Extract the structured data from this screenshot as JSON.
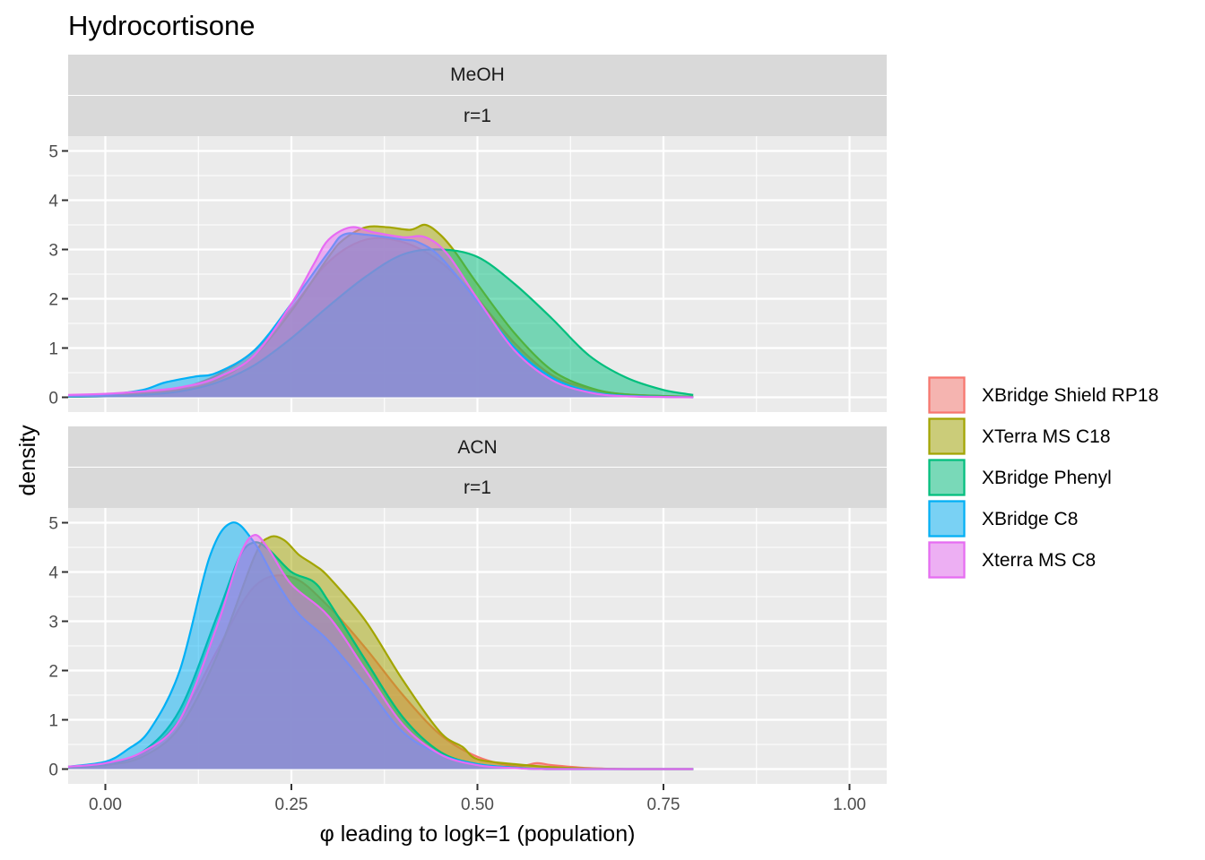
{
  "chart_data": {
    "type": "area",
    "title": "Hydrocortisone",
    "xlabel": "φ leading to logk=1 (population)",
    "ylabel": "density",
    "xlim": [
      -0.05,
      1.05
    ],
    "ylim": [
      -0.3,
      5.3
    ],
    "x_ticks": [
      0.0,
      0.25,
      0.5,
      0.75,
      1.0
    ],
    "x_tick_labels": [
      "0.00",
      "0.25",
      "0.50",
      "0.75",
      "1.00"
    ],
    "y_ticks": [
      0,
      1,
      2,
      3,
      4,
      5
    ],
    "y_tick_labels": [
      "0",
      "1",
      "2",
      "3",
      "4",
      "5"
    ],
    "grid": true,
    "legend_position": "right",
    "legend": [
      "XBridge Shield RP18",
      "XTerra MS C18",
      "XBridge Phenyl",
      "XBridge C8",
      "Xterra MS C8"
    ],
    "series_colors": [
      "#F8766D",
      "#A3A500",
      "#00BF7D",
      "#00B0F6",
      "#E76BF3"
    ],
    "panels": [
      {
        "strip": [
          "MeOH",
          "r=1"
        ],
        "series": [
          {
            "name": "XBridge Shield RP18",
            "x": [
              -0.05,
              0.0,
              0.05,
              0.1,
              0.15,
              0.2,
              0.25,
              0.3,
              0.35,
              0.4,
              0.45,
              0.5,
              0.55,
              0.6,
              0.65,
              0.7,
              0.79
            ],
            "y": [
              0.03,
              0.04,
              0.08,
              0.18,
              0.45,
              0.95,
              1.8,
              2.75,
              3.2,
              3.15,
              2.75,
              2.0,
              1.1,
              0.45,
              0.18,
              0.06,
              0.01
            ]
          },
          {
            "name": "XTerra MS C18",
            "x": [
              -0.05,
              0.0,
              0.05,
              0.1,
              0.15,
              0.2,
              0.25,
              0.3,
              0.32,
              0.35,
              0.38,
              0.41,
              0.43,
              0.45,
              0.47,
              0.5,
              0.55,
              0.6,
              0.65,
              0.7,
              0.79
            ],
            "y": [
              0.02,
              0.04,
              0.08,
              0.15,
              0.35,
              0.85,
              1.75,
              2.85,
              3.2,
              3.45,
              3.45,
              3.4,
              3.5,
              3.3,
              2.95,
              2.3,
              1.3,
              0.55,
              0.2,
              0.06,
              0.01
            ]
          },
          {
            "name": "XBridge Phenyl",
            "x": [
              -0.05,
              0.0,
              0.05,
              0.1,
              0.15,
              0.2,
              0.25,
              0.3,
              0.35,
              0.4,
              0.45,
              0.5,
              0.55,
              0.6,
              0.65,
              0.7,
              0.75,
              0.79
            ],
            "y": [
              0.01,
              0.02,
              0.05,
              0.12,
              0.3,
              0.65,
              1.2,
              1.85,
              2.45,
              2.9,
              3.0,
              2.85,
              2.3,
              1.6,
              0.85,
              0.4,
              0.15,
              0.05
            ]
          },
          {
            "name": "XBridge C8",
            "x": [
              -0.05,
              0.0,
              0.05,
              0.08,
              0.12,
              0.15,
              0.2,
              0.25,
              0.3,
              0.32,
              0.35,
              0.4,
              0.42,
              0.45,
              0.5,
              0.55,
              0.6,
              0.65,
              0.7,
              0.79
            ],
            "y": [
              0.02,
              0.05,
              0.15,
              0.3,
              0.42,
              0.5,
              0.95,
              1.9,
              2.95,
              3.3,
              3.3,
              3.2,
              3.15,
              2.85,
              1.95,
              1.0,
              0.4,
              0.12,
              0.03,
              0.0
            ]
          },
          {
            "name": "Xterra MS C8",
            "x": [
              -0.05,
              0.0,
              0.05,
              0.1,
              0.15,
              0.2,
              0.25,
              0.28,
              0.3,
              0.33,
              0.36,
              0.4,
              0.43,
              0.46,
              0.5,
              0.55,
              0.6,
              0.65,
              0.7,
              0.79
            ],
            "y": [
              0.05,
              0.07,
              0.12,
              0.2,
              0.4,
              0.85,
              1.9,
              2.7,
              3.2,
              3.45,
              3.35,
              3.25,
              3.25,
              2.9,
              2.0,
              0.95,
              0.35,
              0.1,
              0.02,
              0.0
            ]
          }
        ]
      },
      {
        "strip": [
          "ACN",
          "r=1"
        ],
        "series": [
          {
            "name": "XBridge Shield RP18",
            "x": [
              -0.05,
              0.0,
              0.05,
              0.1,
              0.15,
              0.2,
              0.25,
              0.3,
              0.35,
              0.4,
              0.45,
              0.5,
              0.55,
              0.58,
              0.6,
              0.65,
              0.7,
              0.79
            ],
            "y": [
              0.05,
              0.1,
              0.3,
              1.0,
              2.4,
              3.7,
              3.9,
              3.3,
              2.45,
              1.5,
              0.7,
              0.25,
              0.06,
              0.12,
              0.08,
              0.02,
              0.0,
              0.0
            ]
          },
          {
            "name": "XTerra MS C18",
            "x": [
              -0.05,
              0.0,
              0.05,
              0.1,
              0.15,
              0.2,
              0.22,
              0.24,
              0.26,
              0.28,
              0.3,
              0.35,
              0.4,
              0.45,
              0.48,
              0.5,
              0.55,
              0.6,
              0.65,
              0.7,
              0.79
            ],
            "y": [
              0.03,
              0.08,
              0.25,
              0.85,
              2.3,
              4.3,
              4.7,
              4.65,
              4.35,
              4.15,
              3.9,
              3.0,
              1.8,
              0.75,
              0.45,
              0.2,
              0.1,
              0.04,
              0.01,
              0.0,
              0.0
            ]
          },
          {
            "name": "XBridge Phenyl",
            "x": [
              -0.05,
              0.0,
              0.05,
              0.1,
              0.15,
              0.18,
              0.2,
              0.22,
              0.25,
              0.28,
              0.3,
              0.35,
              0.4,
              0.45,
              0.5,
              0.55,
              0.6,
              0.79
            ],
            "y": [
              0.04,
              0.1,
              0.35,
              1.2,
              3.1,
              4.3,
              4.6,
              4.45,
              4.0,
              3.8,
              3.4,
              2.2,
              1.05,
              0.35,
              0.1,
              0.03,
              0.0,
              0.0
            ]
          },
          {
            "name": "XBridge C8",
            "x": [
              -0.05,
              0.0,
              0.03,
              0.06,
              0.1,
              0.14,
              0.17,
              0.2,
              0.23,
              0.26,
              0.3,
              0.35,
              0.4,
              0.45,
              0.5,
              0.55,
              0.6,
              0.79
            ],
            "y": [
              0.05,
              0.15,
              0.4,
              0.8,
              2.0,
              4.3,
              5.0,
              4.6,
              3.8,
              3.15,
              2.6,
              1.7,
              0.75,
              0.3,
              0.1,
              0.03,
              0.0,
              0.0
            ]
          },
          {
            "name": "Xterra MS C8",
            "x": [
              -0.05,
              0.0,
              0.05,
              0.1,
              0.15,
              0.18,
              0.2,
              0.22,
              0.25,
              0.3,
              0.35,
              0.4,
              0.45,
              0.5,
              0.55,
              0.6,
              0.79
            ],
            "y": [
              0.05,
              0.12,
              0.35,
              1.0,
              2.9,
              4.3,
              4.75,
              4.45,
              3.75,
              3.1,
              2.0,
              0.9,
              0.3,
              0.08,
              0.02,
              0.0,
              0.0
            ]
          }
        ]
      }
    ]
  }
}
